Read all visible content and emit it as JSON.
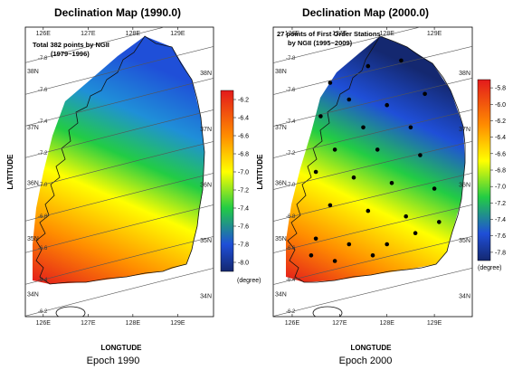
{
  "maps": [
    {
      "title": "Declination Map (1990.0)",
      "note_line1": "Total 382 points by NGII",
      "note_line2": "(1979~1996)",
      "epoch": "Epoch 1990",
      "xlabel": "LONGTUDE",
      "ylabel": "LATITUDE",
      "top_ticks": [
        "126E",
        "127E",
        "128E",
        "129E"
      ],
      "bottom_ticks": [
        "126E",
        "127E",
        "128E",
        "129E"
      ],
      "left_ticks": [
        "38N",
        "37N",
        "36N",
        "35N",
        "34N"
      ],
      "right_ticks": [
        "38N",
        "37N",
        "36N",
        "35N",
        "34N"
      ],
      "colorbar_ticks": [
        "-6.2",
        "-6.4",
        "-6.6",
        "-6.8",
        "-7.0",
        "-7.2",
        "-7.4",
        "-7.6",
        "-7.8",
        "-8.0"
      ],
      "colorbar_unit": "(degree)",
      "isoline_labels": [
        "-6.2",
        "-6.4",
        "-6.6",
        "-6.8",
        "-7.0",
        "-7.2",
        "-7.4",
        "-7.6",
        "-7.8"
      ]
    },
    {
      "title": "Declination Map (2000.0)",
      "note_line1": "27 points of  First Order Stations",
      "note_line2": "by NGII (1995~2009)",
      "epoch": "Epoch 2000",
      "xlabel": "LONGTUDE",
      "ylabel": "LATITUDE",
      "top_ticks": [
        "126E",
        "127E",
        "128E",
        "129E"
      ],
      "bottom_ticks": [
        "126E",
        "127E",
        "128E",
        "129E"
      ],
      "left_ticks": [
        "38N",
        "37N",
        "36N",
        "35N",
        "34N"
      ],
      "right_ticks": [
        "38N",
        "37N",
        "36N",
        "35N",
        "34N"
      ],
      "colorbar_ticks": [
        "-5.8",
        "-6.0",
        "-6.2",
        "-6.4",
        "-6.6",
        "-6.8",
        "-7.0",
        "-7.2",
        "-7.4",
        "-7.6",
        "-7.8"
      ],
      "colorbar_unit": "(degree)",
      "isoline_labels": [
        "-6.2",
        "-6.4",
        "-6.6",
        "-6.8",
        "-7.0",
        "-7.2",
        "-7.4",
        "-7.6",
        "-7.8"
      ]
    }
  ],
  "colors": {
    "high": "#e31a1c",
    "mid_high": "#ff8c00",
    "mid": "#ffff00",
    "mid_low": "#22cc44",
    "low": "#1f4fd8",
    "lowest": "#142870"
  },
  "stations": [
    {
      "lon": 127.6,
      "lat": 38.1
    },
    {
      "lon": 128.3,
      "lat": 38.2
    },
    {
      "lon": 126.8,
      "lat": 37.8
    },
    {
      "lon": 127.2,
      "lat": 37.5
    },
    {
      "lon": 128.0,
      "lat": 37.4
    },
    {
      "lon": 128.8,
      "lat": 37.6
    },
    {
      "lon": 126.6,
      "lat": 37.2
    },
    {
      "lon": 127.5,
      "lat": 37.0
    },
    {
      "lon": 128.5,
      "lat": 37.0
    },
    {
      "lon": 126.9,
      "lat": 36.6
    },
    {
      "lon": 127.8,
      "lat": 36.6
    },
    {
      "lon": 128.7,
      "lat": 36.5
    },
    {
      "lon": 126.5,
      "lat": 36.2
    },
    {
      "lon": 127.3,
      "lat": 36.1
    },
    {
      "lon": 128.1,
      "lat": 36.0
    },
    {
      "lon": 129.0,
      "lat": 35.9
    },
    {
      "lon": 126.8,
      "lat": 35.6
    },
    {
      "lon": 127.6,
      "lat": 35.5
    },
    {
      "lon": 128.4,
      "lat": 35.4
    },
    {
      "lon": 129.1,
      "lat": 35.3
    },
    {
      "lon": 126.5,
      "lat": 35.0
    },
    {
      "lon": 127.2,
      "lat": 34.9
    },
    {
      "lon": 128.0,
      "lat": 34.9
    },
    {
      "lon": 126.9,
      "lat": 34.6
    },
    {
      "lon": 127.7,
      "lat": 34.7
    },
    {
      "lon": 126.4,
      "lat": 34.7
    },
    {
      "lon": 128.6,
      "lat": 35.1
    }
  ]
}
